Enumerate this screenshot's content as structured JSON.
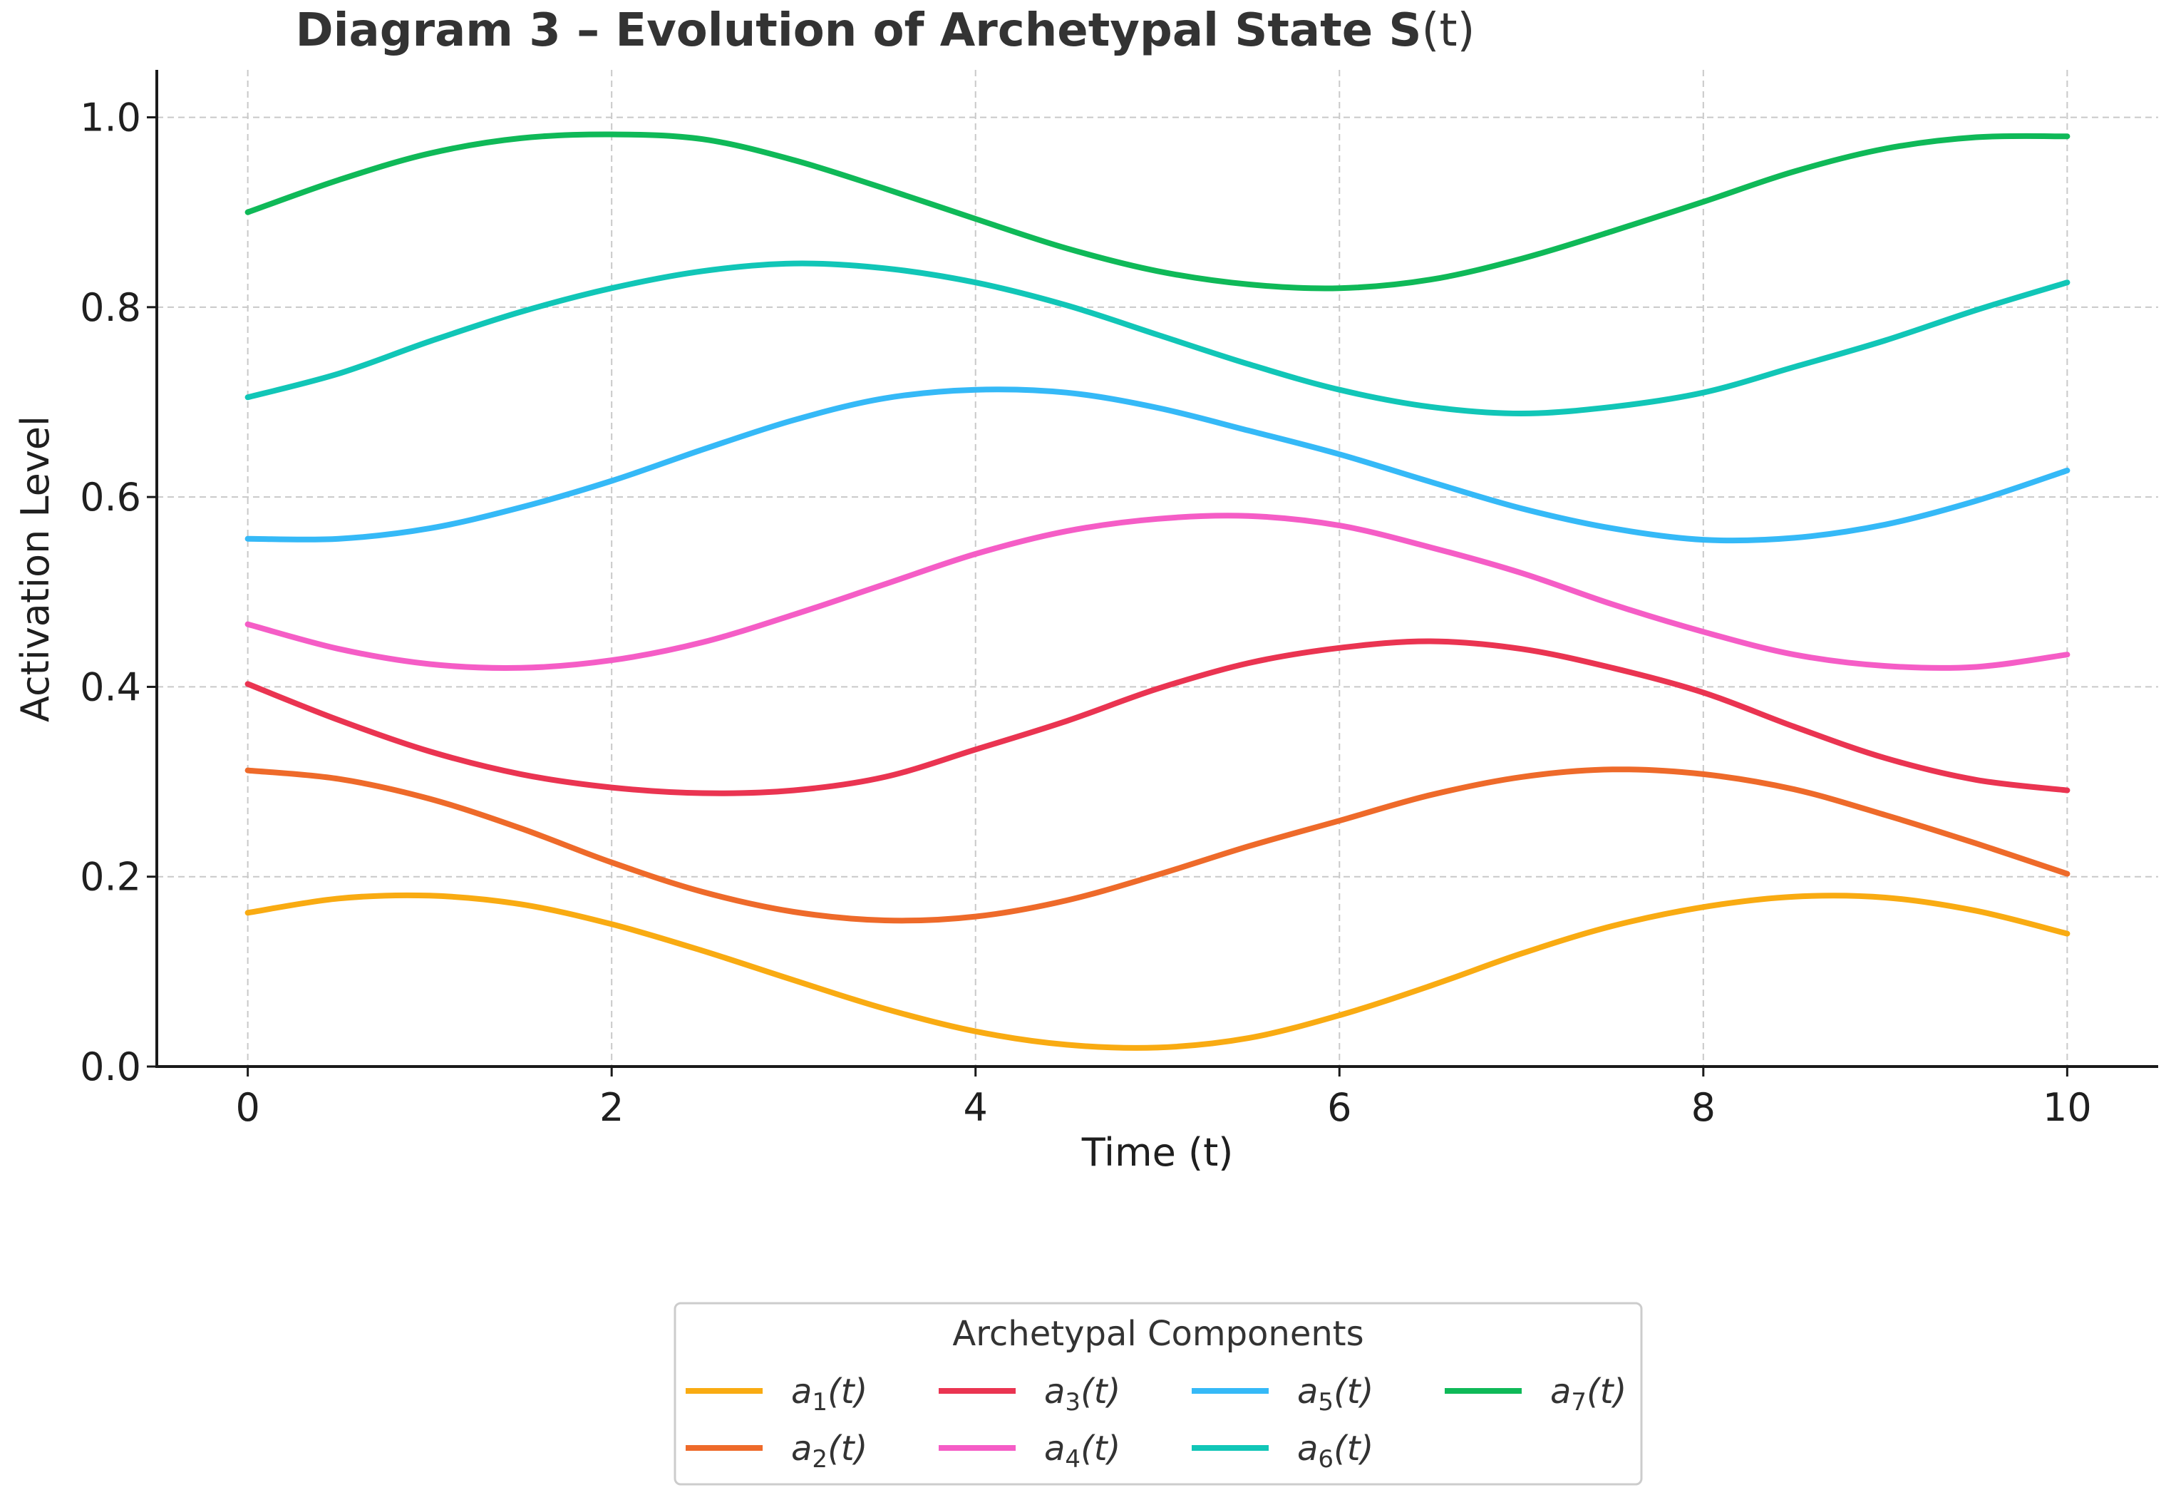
{
  "chart_data": {
    "type": "line",
    "title_main": "Diagram 3 – Evolution of Archetypal State S",
    "title_arg": "(t)",
    "xlabel": "Time (t)",
    "ylabel": "Activation Level",
    "xlim": [
      -0.5,
      10.5
    ],
    "ylim": [
      0.0,
      1.05
    ],
    "x_ticks": [
      0,
      2,
      4,
      6,
      8,
      10
    ],
    "y_ticks": [
      0.0,
      0.2,
      0.4,
      0.6,
      0.8,
      1.0
    ],
    "x_tick_labels": [
      "0",
      "2",
      "4",
      "6",
      "8",
      "10"
    ],
    "y_tick_labels": [
      "0.0",
      "0.2",
      "0.4",
      "0.6",
      "0.8",
      "1.0"
    ],
    "grid": true,
    "legend": {
      "title": "Archetypal Components",
      "placement": "bottom-center",
      "columns": 4
    },
    "x": [
      0,
      0.5,
      1,
      1.5,
      2,
      2.5,
      3,
      3.5,
      4,
      4.5,
      5,
      5.5,
      6,
      6.5,
      7,
      7.5,
      8,
      8.5,
      9,
      9.5,
      10
    ],
    "series": [
      {
        "name": "a",
        "sub": "1",
        "suffix": "(t)",
        "color": "#f9ab12",
        "values": [
          0.162,
          0.177,
          0.18,
          0.171,
          0.15,
          0.122,
          0.091,
          0.061,
          0.037,
          0.023,
          0.02,
          0.03,
          0.054,
          0.085,
          0.119,
          0.148,
          0.168,
          0.179,
          0.178,
          0.164,
          0.14
        ]
      },
      {
        "name": "a",
        "sub": "2",
        "suffix": "(t)",
        "color": "#ee6a2a",
        "values": [
          0.312,
          0.303,
          0.282,
          0.251,
          0.215,
          0.184,
          0.163,
          0.154,
          0.158,
          0.175,
          0.202,
          0.232,
          0.259,
          0.286,
          0.305,
          0.313,
          0.308,
          0.292,
          0.265,
          0.235,
          0.203
        ]
      },
      {
        "name": "a",
        "sub": "3",
        "suffix": "(t)",
        "color": "#ea3451",
        "values": [
          0.403,
          0.365,
          0.332,
          0.308,
          0.294,
          0.288,
          0.291,
          0.305,
          0.334,
          0.364,
          0.398,
          0.425,
          0.441,
          0.448,
          0.44,
          0.42,
          0.394,
          0.358,
          0.325,
          0.302,
          0.291
        ]
      },
      {
        "name": "a",
        "sub": "4",
        "suffix": "(t)",
        "color": "#f55dc6",
        "values": [
          0.466,
          0.44,
          0.424,
          0.42,
          0.428,
          0.447,
          0.476,
          0.508,
          0.54,
          0.564,
          0.577,
          0.58,
          0.57,
          0.547,
          0.52,
          0.487,
          0.458,
          0.434,
          0.422,
          0.421,
          0.434
        ]
      },
      {
        "name": "a",
        "sub": "5",
        "suffix": "(t)",
        "color": "#35b9f7",
        "values": [
          0.556,
          0.556,
          0.567,
          0.589,
          0.617,
          0.65,
          0.681,
          0.704,
          0.713,
          0.71,
          0.694,
          0.67,
          0.645,
          0.616,
          0.588,
          0.567,
          0.555,
          0.557,
          0.571,
          0.596,
          0.628
        ]
      },
      {
        "name": "a",
        "sub": "6",
        "suffix": "(t)",
        "color": "#11c6b7",
        "values": [
          0.705,
          0.73,
          0.764,
          0.795,
          0.82,
          0.838,
          0.846,
          0.841,
          0.826,
          0.802,
          0.771,
          0.74,
          0.713,
          0.695,
          0.688,
          0.695,
          0.71,
          0.737,
          0.765,
          0.797,
          0.826
        ]
      },
      {
        "name": "a",
        "sub": "7",
        "suffix": "(t)",
        "color": "#0fb958",
        "values": [
          0.9,
          0.934,
          0.962,
          0.978,
          0.982,
          0.977,
          0.955,
          0.925,
          0.893,
          0.862,
          0.838,
          0.824,
          0.82,
          0.829,
          0.851,
          0.88,
          0.911,
          0.943,
          0.967,
          0.979,
          0.98
        ]
      }
    ]
  }
}
